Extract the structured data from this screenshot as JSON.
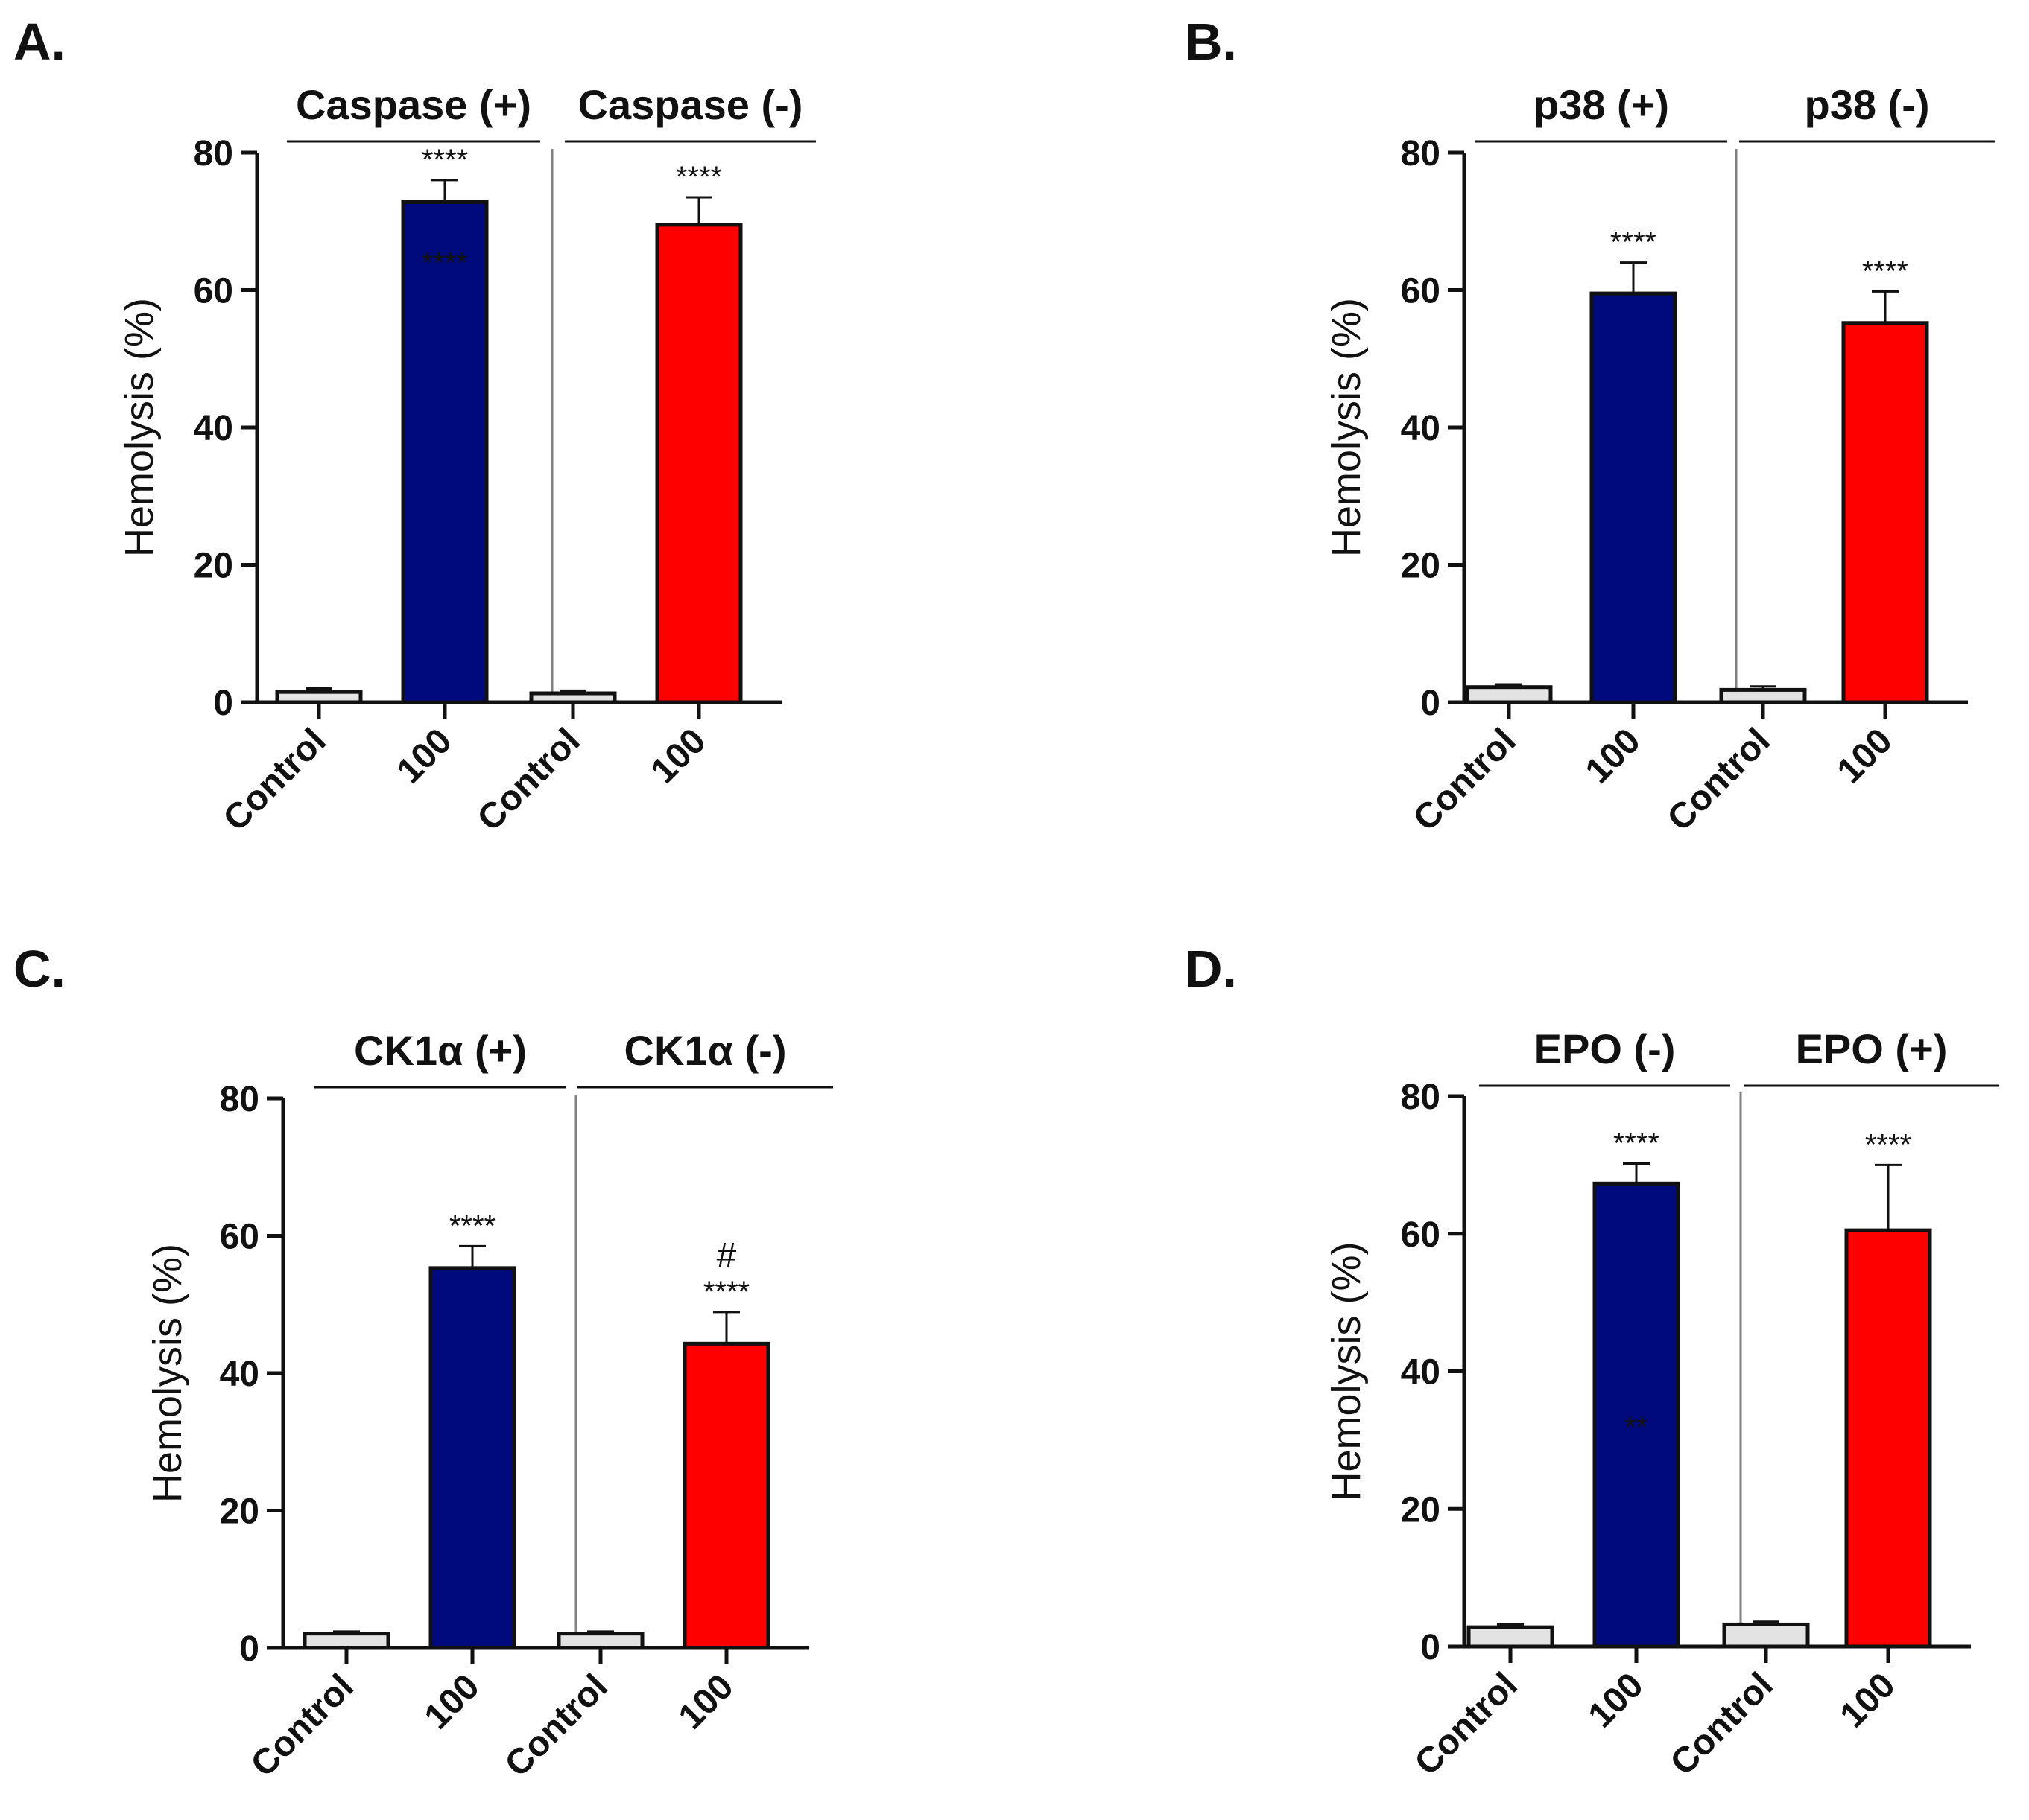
{
  "colors": {
    "control": "#e3e3e3",
    "treated_plus": "#000a7d",
    "treated_minus": "#ff0000",
    "axis": "#111111",
    "divider": "#808080"
  },
  "chart_data": [
    {
      "type": "bar",
      "panel": "A.",
      "ylabel": "Hemolysis (%)",
      "ylim": [
        0,
        80
      ],
      "yticks": [
        "0",
        "20",
        "40",
        "60",
        "80"
      ],
      "categories": [
        "Control",
        "100",
        "Control",
        "100"
      ],
      "groups": [
        {
          "label": "Caspase (+)",
          "bars": [
            0,
            1
          ]
        },
        {
          "label": "Caspase (-)",
          "bars": [
            2,
            3
          ]
        }
      ],
      "values": [
        1.5,
        72.8,
        1.3,
        69.5
      ],
      "errors": [
        0.5,
        3.2,
        0.4,
        4.0
      ],
      "bar_colors": [
        "control",
        "treated_plus",
        "control",
        "treated_minus"
      ],
      "annotations": [
        "",
        "****",
        "",
        "****"
      ],
      "inner_annotations": [
        "",
        "****",
        "",
        ""
      ],
      "extra_marks": [
        "",
        "",
        "",
        ""
      ]
    },
    {
      "type": "bar",
      "panel": "B.",
      "ylabel": "Hemolysis (%)",
      "ylim": [
        0,
        80
      ],
      "yticks": [
        "0",
        "20",
        "40",
        "60",
        "80"
      ],
      "categories": [
        "Control",
        "100",
        "Control",
        "100"
      ],
      "groups": [
        {
          "label": "p38 (+)",
          "bars": [
            0,
            1
          ]
        },
        {
          "label": "p38 (-)",
          "bars": [
            2,
            3
          ]
        }
      ],
      "values": [
        2.2,
        59.5,
        1.8,
        55.2
      ],
      "errors": [
        0.4,
        4.5,
        0.5,
        4.6
      ],
      "bar_colors": [
        "control",
        "treated_plus",
        "control",
        "treated_minus"
      ],
      "annotations": [
        "",
        "****",
        "",
        "****"
      ],
      "inner_annotations": [
        "",
        "",
        "",
        ""
      ],
      "extra_marks": [
        "",
        "",
        "",
        ""
      ]
    },
    {
      "type": "bar",
      "panel": "C.",
      "ylabel": "Hemolysis (%)",
      "ylim": [
        0,
        80
      ],
      "yticks": [
        "0",
        "20",
        "40",
        "60",
        "80"
      ],
      "categories": [
        "Control",
        "100",
        "Control",
        "100"
      ],
      "groups": [
        {
          "label": "CK1α (+)",
          "bars": [
            0,
            1
          ]
        },
        {
          "label": "CK1α (-)",
          "bars": [
            2,
            3
          ]
        }
      ],
      "values": [
        2.1,
        55.3,
        2.1,
        44.3
      ],
      "errors": [
        0.3,
        3.2,
        0.3,
        4.6
      ],
      "bar_colors": [
        "control",
        "treated_plus",
        "control",
        "treated_minus"
      ],
      "annotations": [
        "",
        "****",
        "",
        "****"
      ],
      "inner_annotations": [
        "",
        "",
        "",
        ""
      ],
      "extra_marks": [
        "",
        "",
        "",
        "#"
      ]
    },
    {
      "type": "bar",
      "panel": "D.",
      "ylabel": "Hemolysis (%)",
      "ylim": [
        0,
        80
      ],
      "yticks": [
        "0",
        "20",
        "40",
        "60",
        "80"
      ],
      "categories": [
        "Control",
        "100",
        "Control",
        "100"
      ],
      "groups": [
        {
          "label": "EPO (-)",
          "bars": [
            0,
            1
          ]
        },
        {
          "label": "EPO (+)",
          "bars": [
            2,
            3
          ]
        }
      ],
      "values": [
        2.8,
        67.3,
        3.2,
        60.5
      ],
      "errors": [
        0.4,
        2.9,
        0.4,
        9.5
      ],
      "bar_colors": [
        "control",
        "treated_plus",
        "control",
        "treated_minus"
      ],
      "annotations": [
        "",
        "****",
        "",
        "****"
      ],
      "inner_annotations": [
        "",
        "**",
        "",
        ""
      ],
      "extra_marks": [
        "",
        "",
        "",
        ""
      ]
    }
  ]
}
